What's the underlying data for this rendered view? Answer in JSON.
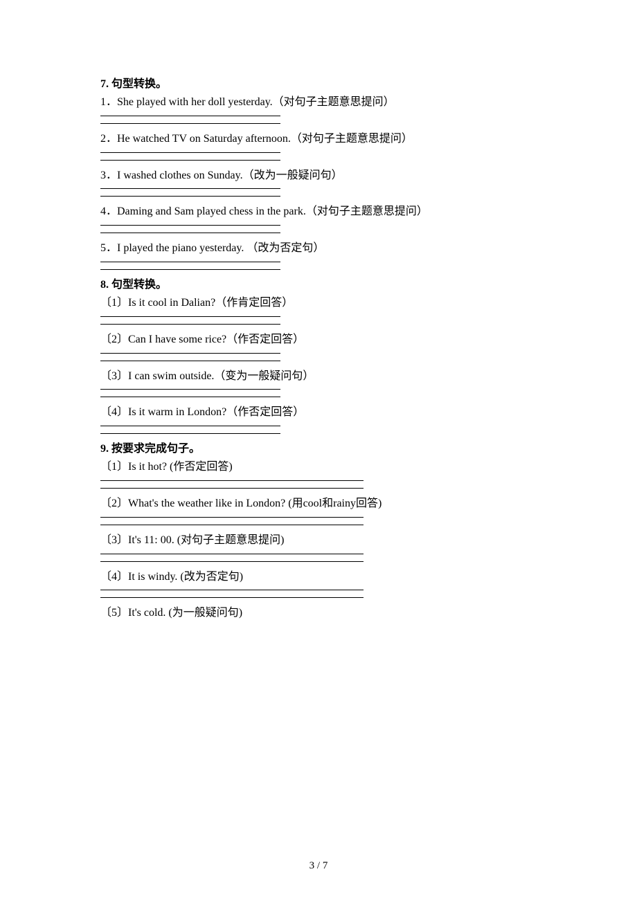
{
  "sections": [
    {
      "title": "7. 句型转换。",
      "blank_style": "short",
      "items": [
        {
          "text": "1．She played with her doll yesterday.（对句子主题意思提问）"
        },
        {
          "text": "2．He watched TV on Saturday afternoon.（对句子主题意思提问）"
        },
        {
          "text": "3．I washed clothes on Sunday.（改为一般疑问句）"
        },
        {
          "text": "4．Daming and Sam played chess in the park.（对句子主题意思提问）"
        },
        {
          "text": "5．I played the piano yesterday. （改为否定句）"
        }
      ]
    },
    {
      "title": "8. 句型转换。",
      "blank_style": "short",
      "items": [
        {
          "text": "〔1〕Is it cool in Dalian?（作肯定回答）"
        },
        {
          "text": "〔2〕Can I have some rice?（作否定回答）"
        },
        {
          "text": "〔3〕I can swim outside.（变为一般疑问句）"
        },
        {
          "text": "〔4〕Is it warm in London?（作否定回答）"
        }
      ]
    },
    {
      "title": "9. 按要求完成句子。",
      "blank_style": "long",
      "items": [
        {
          "text": "〔1〕Is it hot? (作否定回答)"
        },
        {
          "text": "〔2〕What's the weather like in London? (用cool和rainy回答)"
        },
        {
          "text": "〔3〕It's 11: 00. (对句子主题意思提问)"
        },
        {
          "text": "〔4〕It is windy. (改为否定句)"
        },
        {
          "text": "〔5〕It's cold. (为一般疑问句)",
          "no_blank": true
        }
      ]
    }
  ],
  "footer": "3 / 7"
}
